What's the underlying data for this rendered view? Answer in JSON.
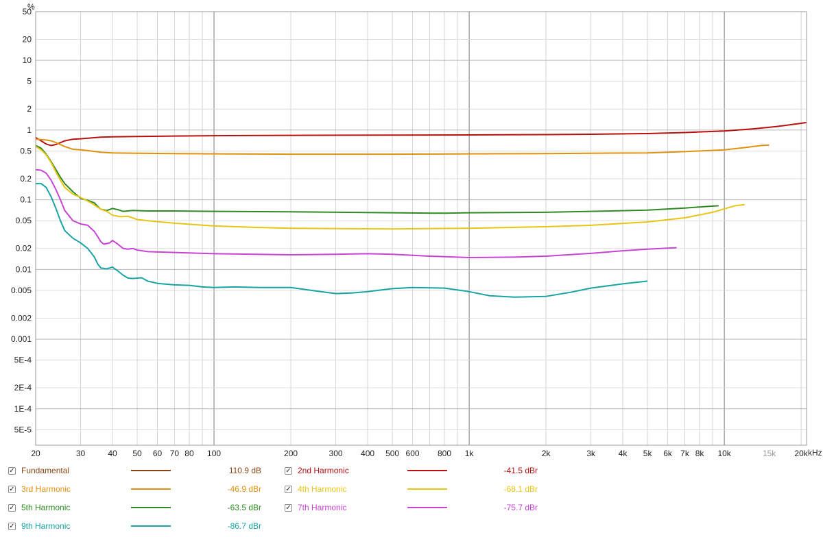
{
  "chart_data": {
    "type": "line",
    "title": "",
    "xlabel": "",
    "ylabel": "",
    "y_unit": "%",
    "x_unit": "kHz",
    "x_scale": "log",
    "y_scale": "log",
    "xlim": [
      20,
      21000
    ],
    "ylim": [
      3e-05,
      50
    ],
    "grid": true,
    "y_ticks": [
      {
        "v": 50,
        "label": "50"
      },
      {
        "v": 20,
        "label": "20"
      },
      {
        "v": 10,
        "label": "10"
      },
      {
        "v": 5,
        "label": "5"
      },
      {
        "v": 2,
        "label": "2"
      },
      {
        "v": 1,
        "label": "1"
      },
      {
        "v": 0.5,
        "label": "0.5"
      },
      {
        "v": 0.2,
        "label": "0.2"
      },
      {
        "v": 0.1,
        "label": "0.1"
      },
      {
        "v": 0.05,
        "label": "0.05"
      },
      {
        "v": 0.02,
        "label": "0.02"
      },
      {
        "v": 0.01,
        "label": "0.01"
      },
      {
        "v": 0.005,
        "label": "0.005"
      },
      {
        "v": 0.002,
        "label": "0.002"
      },
      {
        "v": 0.001,
        "label": "0.001"
      },
      {
        "v": 0.0005,
        "label": "5E-4"
      },
      {
        "v": 0.0002,
        "label": "2E-4"
      },
      {
        "v": 0.0001,
        "label": "1E-4"
      },
      {
        "v": 5e-05,
        "label": "5E-5"
      }
    ],
    "x_ticks": [
      {
        "v": 20,
        "label": "20"
      },
      {
        "v": 30,
        "label": "30"
      },
      {
        "v": 40,
        "label": "40"
      },
      {
        "v": 50,
        "label": "50"
      },
      {
        "v": 60,
        "label": "60"
      },
      {
        "v": 70,
        "label": "70"
      },
      {
        "v": 80,
        "label": "80"
      },
      {
        "v": 100,
        "label": "100"
      },
      {
        "v": 200,
        "label": "200"
      },
      {
        "v": 300,
        "label": "300"
      },
      {
        "v": 400,
        "label": "400"
      },
      {
        "v": 500,
        "label": "500"
      },
      {
        "v": 600,
        "label": "600"
      },
      {
        "v": 800,
        "label": "800"
      },
      {
        "v": 1000,
        "label": "1k"
      },
      {
        "v": 2000,
        "label": "2k"
      },
      {
        "v": 3000,
        "label": "3k"
      },
      {
        "v": 4000,
        "label": "4k"
      },
      {
        "v": 5000,
        "label": "5k"
      },
      {
        "v": 6000,
        "label": "6k"
      },
      {
        "v": 7000,
        "label": "7k"
      },
      {
        "v": 8000,
        "label": "8k"
      },
      {
        "v": 10000,
        "label": "10k"
      },
      {
        "v": 15000,
        "label": "15k",
        "dim": true
      },
      {
        "v": 20000,
        "label": "20k"
      }
    ],
    "series": [
      {
        "name": "2nd Harmonic",
        "color": "#b80f0f",
        "points": [
          [
            20,
            0.78
          ],
          [
            21,
            0.7
          ],
          [
            22,
            0.63
          ],
          [
            23,
            0.6
          ],
          [
            24,
            0.62
          ],
          [
            26,
            0.7
          ],
          [
            28,
            0.74
          ],
          [
            30,
            0.75
          ],
          [
            33,
            0.77
          ],
          [
            36,
            0.79
          ],
          [
            40,
            0.8
          ],
          [
            50,
            0.81
          ],
          [
            70,
            0.82
          ],
          [
            100,
            0.83
          ],
          [
            200,
            0.84
          ],
          [
            500,
            0.845
          ],
          [
            1000,
            0.85
          ],
          [
            2000,
            0.86
          ],
          [
            3000,
            0.87
          ],
          [
            5000,
            0.89
          ],
          [
            7000,
            0.92
          ],
          [
            10000,
            0.97
          ],
          [
            13000,
            1.04
          ],
          [
            16000,
            1.12
          ],
          [
            20000,
            1.25
          ],
          [
            21000,
            1.28
          ]
        ]
      },
      {
        "name": "3rd Harmonic",
        "color": "#e0920e",
        "points": [
          [
            20,
            0.74
          ],
          [
            21,
            0.73
          ],
          [
            22,
            0.72
          ],
          [
            23,
            0.7
          ],
          [
            24,
            0.66
          ],
          [
            26,
            0.58
          ],
          [
            28,
            0.53
          ],
          [
            30,
            0.52
          ],
          [
            33,
            0.5
          ],
          [
            36,
            0.48
          ],
          [
            40,
            0.47
          ],
          [
            50,
            0.465
          ],
          [
            70,
            0.46
          ],
          [
            100,
            0.455
          ],
          [
            200,
            0.45
          ],
          [
            500,
            0.45
          ],
          [
            1000,
            0.455
          ],
          [
            2000,
            0.46
          ],
          [
            3000,
            0.465
          ],
          [
            5000,
            0.47
          ],
          [
            7000,
            0.49
          ],
          [
            10000,
            0.52
          ],
          [
            12000,
            0.56
          ],
          [
            14000,
            0.6
          ],
          [
            15000,
            0.61
          ]
        ]
      },
      {
        "name": "5th Harmonic",
        "color": "#2e8b22",
        "points": [
          [
            20,
            0.6
          ],
          [
            21,
            0.55
          ],
          [
            22,
            0.45
          ],
          [
            23,
            0.35
          ],
          [
            24,
            0.27
          ],
          [
            25,
            0.21
          ],
          [
            26,
            0.17
          ],
          [
            28,
            0.13
          ],
          [
            30,
            0.105
          ],
          [
            32,
            0.098
          ],
          [
            34,
            0.09
          ],
          [
            35,
            0.08
          ],
          [
            36,
            0.073
          ],
          [
            38,
            0.07
          ],
          [
            40,
            0.075
          ],
          [
            42,
            0.072
          ],
          [
            44,
            0.068
          ],
          [
            48,
            0.07
          ],
          [
            55,
            0.069
          ],
          [
            70,
            0.069
          ],
          [
            100,
            0.068
          ],
          [
            200,
            0.067
          ],
          [
            500,
            0.065
          ],
          [
            800,
            0.064
          ],
          [
            1000,
            0.065
          ],
          [
            2000,
            0.066
          ],
          [
            3000,
            0.068
          ],
          [
            5000,
            0.071
          ],
          [
            7000,
            0.076
          ],
          [
            9000,
            0.081
          ],
          [
            9500,
            0.082
          ]
        ]
      },
      {
        "name": "4th Harmonic",
        "color": "#e8c414",
        "points": [
          [
            20,
            0.58
          ],
          [
            21,
            0.52
          ],
          [
            22,
            0.44
          ],
          [
            23,
            0.34
          ],
          [
            24,
            0.25
          ],
          [
            25,
            0.19
          ],
          [
            26,
            0.15
          ],
          [
            28,
            0.12
          ],
          [
            30,
            0.108
          ],
          [
            33,
            0.09
          ],
          [
            36,
            0.073
          ],
          [
            38,
            0.068
          ],
          [
            40,
            0.06
          ],
          [
            43,
            0.057
          ],
          [
            46,
            0.058
          ],
          [
            50,
            0.052
          ],
          [
            55,
            0.05
          ],
          [
            70,
            0.046
          ],
          [
            100,
            0.042
          ],
          [
            150,
            0.04
          ],
          [
            200,
            0.039
          ],
          [
            500,
            0.038
          ],
          [
            1000,
            0.039
          ],
          [
            2000,
            0.041
          ],
          [
            3000,
            0.043
          ],
          [
            5000,
            0.048
          ],
          [
            7000,
            0.055
          ],
          [
            9000,
            0.066
          ],
          [
            11000,
            0.082
          ],
          [
            12000,
            0.085
          ]
        ]
      },
      {
        "name": "7th Harmonic",
        "color": "#c843d4",
        "points": [
          [
            20,
            0.27
          ],
          [
            21,
            0.265
          ],
          [
            22,
            0.24
          ],
          [
            23,
            0.19
          ],
          [
            24,
            0.14
          ],
          [
            25,
            0.1
          ],
          [
            26,
            0.07
          ],
          [
            28,
            0.05
          ],
          [
            30,
            0.045
          ],
          [
            32,
            0.043
          ],
          [
            34,
            0.035
          ],
          [
            36,
            0.025
          ],
          [
            37,
            0.023
          ],
          [
            39,
            0.024
          ],
          [
            40,
            0.026
          ],
          [
            42,
            0.023
          ],
          [
            44,
            0.02
          ],
          [
            46,
            0.0195
          ],
          [
            48,
            0.02
          ],
          [
            50,
            0.019
          ],
          [
            55,
            0.018
          ],
          [
            70,
            0.0175
          ],
          [
            100,
            0.0168
          ],
          [
            200,
            0.0162
          ],
          [
            300,
            0.0165
          ],
          [
            400,
            0.0168
          ],
          [
            500,
            0.0165
          ],
          [
            700,
            0.0155
          ],
          [
            1000,
            0.0148
          ],
          [
            1500,
            0.015
          ],
          [
            2000,
            0.0155
          ],
          [
            3000,
            0.017
          ],
          [
            4000,
            0.0185
          ],
          [
            5000,
            0.0195
          ],
          [
            6500,
            0.0205
          ]
        ]
      },
      {
        "name": "9th Harmonic",
        "color": "#17a3a3",
        "points": [
          [
            20,
            0.17
          ],
          [
            21,
            0.17
          ],
          [
            22,
            0.15
          ],
          [
            23,
            0.11
          ],
          [
            24,
            0.075
          ],
          [
            25,
            0.05
          ],
          [
            26,
            0.036
          ],
          [
            28,
            0.028
          ],
          [
            30,
            0.024
          ],
          [
            32,
            0.02
          ],
          [
            34,
            0.015
          ],
          [
            35,
            0.012
          ],
          [
            36,
            0.0105
          ],
          [
            38,
            0.0102
          ],
          [
            40,
            0.0108
          ],
          [
            42,
            0.0095
          ],
          [
            44,
            0.0083
          ],
          [
            46,
            0.0075
          ],
          [
            48,
            0.0074
          ],
          [
            52,
            0.0076
          ],
          [
            55,
            0.0068
          ],
          [
            60,
            0.0063
          ],
          [
            70,
            0.006
          ],
          [
            80,
            0.0059
          ],
          [
            90,
            0.0056
          ],
          [
            100,
            0.0055
          ],
          [
            120,
            0.0056
          ],
          [
            150,
            0.0055
          ],
          [
            200,
            0.0055
          ],
          [
            250,
            0.0049
          ],
          [
            300,
            0.0045
          ],
          [
            350,
            0.0046
          ],
          [
            400,
            0.0048
          ],
          [
            500,
            0.0053
          ],
          [
            600,
            0.0055
          ],
          [
            800,
            0.0054
          ],
          [
            1000,
            0.0048
          ],
          [
            1200,
            0.0042
          ],
          [
            1500,
            0.004
          ],
          [
            2000,
            0.0041
          ],
          [
            2500,
            0.0047
          ],
          [
            3000,
            0.0054
          ],
          [
            4000,
            0.0062
          ],
          [
            5000,
            0.0068
          ]
        ]
      }
    ]
  },
  "legend": [
    {
      "label": "Fundamental",
      "value": "110.9 dB",
      "color": "#8b4513",
      "checked": "✓"
    },
    {
      "label": "2nd Harmonic",
      "value": "-41.5 dBr",
      "color": "#b80f0f",
      "checked": "✓"
    },
    {
      "label": "3rd Harmonic",
      "value": "-46.9 dBr",
      "color": "#e0920e",
      "checked": "✓"
    },
    {
      "label": "4th Harmonic",
      "value": "-68.1 dBr",
      "color": "#e8c414",
      "checked": "✓"
    },
    {
      "label": "5th Harmonic",
      "value": "-63.5 dBr",
      "color": "#2e8b22",
      "checked": "✓"
    },
    {
      "label": "7th Harmonic",
      "value": "-75.7 dBr",
      "color": "#c843d4",
      "checked": "✓"
    },
    {
      "label": "9th Harmonic",
      "value": "-86.7 dBr",
      "color": "#17a3a3",
      "checked": "✓"
    }
  ]
}
